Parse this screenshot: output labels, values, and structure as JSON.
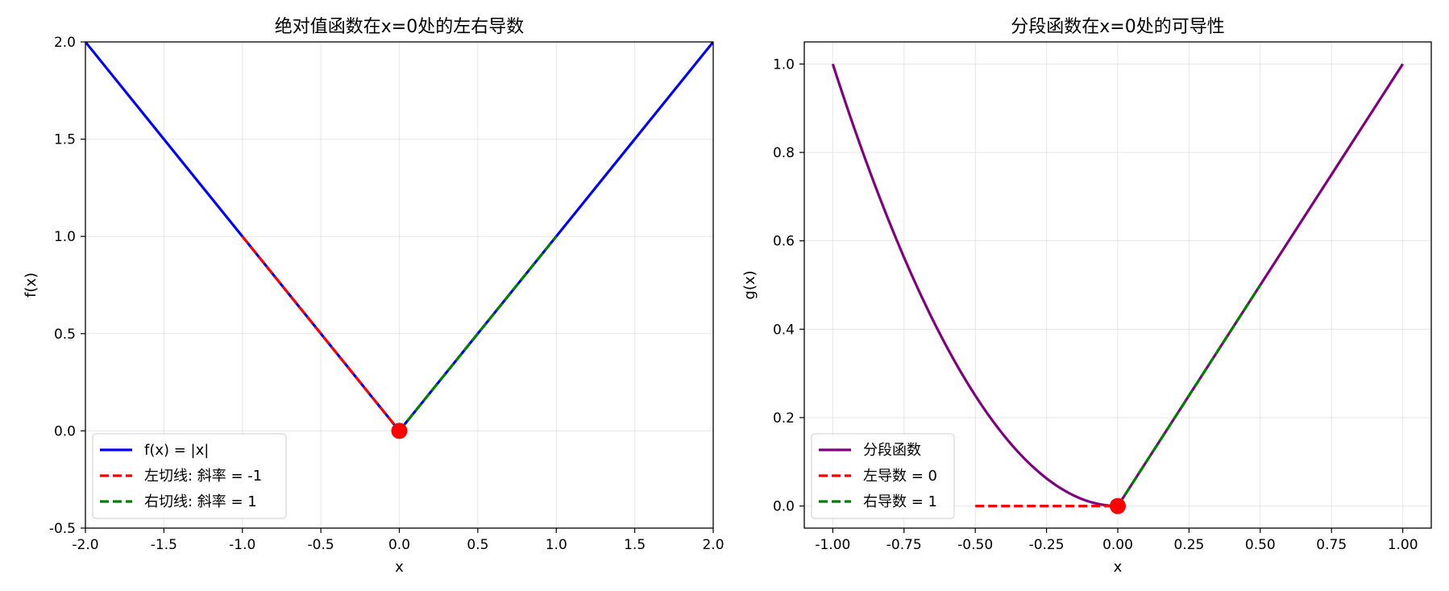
{
  "chart_data": [
    {
      "type": "line",
      "title": "绝对值函数在x=0处的左右导数",
      "xlabel": "x",
      "ylabel": "f(x)",
      "xlim": [
        -2.0,
        2.0
      ],
      "ylim": [
        -0.5,
        2.0
      ],
      "xticks": [
        -2.0,
        -1.5,
        -1.0,
        -0.5,
        0.0,
        0.5,
        1.0,
        1.5,
        2.0
      ],
      "xtick_labels": [
        "-2.0",
        "-1.5",
        "-1.0",
        "-0.5",
        "0.0",
        "0.5",
        "1.0",
        "1.5",
        "2.0"
      ],
      "yticks": [
        -0.5,
        0.0,
        0.5,
        1.0,
        1.5,
        2.0
      ],
      "ytick_labels": [
        "-0.5",
        "0.0",
        "0.5",
        "1.0",
        "1.5",
        "2.0"
      ],
      "grid": true,
      "legend_position": "lower-left",
      "series": [
        {
          "name": "f(x) = |x|",
          "style": "solid",
          "color": "#0000ff",
          "x": [
            -2.0,
            0.0,
            2.0
          ],
          "y": [
            2.0,
            0.0,
            2.0
          ]
        },
        {
          "name": "左切线: 斜率 = -1",
          "style": "dashed",
          "color": "#ff0000",
          "x": [
            -1.0,
            0.0
          ],
          "y": [
            1.0,
            0.0
          ]
        },
        {
          "name": "右切线: 斜率 = 1",
          "style": "dashed",
          "color": "#008000",
          "x": [
            0.0,
            1.0
          ],
          "y": [
            0.0,
            1.0
          ]
        }
      ],
      "points": [
        {
          "x": 0.0,
          "y": 0.0,
          "color": "#ff0000"
        }
      ]
    },
    {
      "type": "line",
      "title": "分段函数在x=0处的可导性",
      "xlabel": "x",
      "ylabel": "g(x)",
      "xlim": [
        -1.1,
        1.1
      ],
      "ylim": [
        -0.05,
        1.05
      ],
      "xticks": [
        -1.0,
        -0.75,
        -0.5,
        -0.25,
        0.0,
        0.25,
        0.5,
        0.75,
        1.0
      ],
      "xtick_labels": [
        "-1.00",
        "-0.75",
        "-0.50",
        "-0.25",
        "0.00",
        "0.25",
        "0.50",
        "0.75",
        "1.00"
      ],
      "yticks": [
        0.0,
        0.2,
        0.4,
        0.6,
        0.8,
        1.0
      ],
      "ytick_labels": [
        "0.0",
        "0.2",
        "0.4",
        "0.6",
        "0.8",
        "1.0"
      ],
      "grid": true,
      "legend_position": "lower-left",
      "series": [
        {
          "name": "分段函数",
          "style": "solid",
          "color": "#800080",
          "x": [
            -1.0,
            -0.9,
            -0.8,
            -0.7,
            -0.6,
            -0.5,
            -0.4,
            -0.3,
            -0.2,
            -0.1,
            0.0,
            1.0
          ],
          "y": [
            1.0,
            0.81,
            0.64,
            0.49,
            0.36,
            0.25,
            0.16,
            0.09,
            0.04,
            0.01,
            0.0,
            1.0
          ]
        },
        {
          "name": "左导数 = 0",
          "style": "dashed",
          "color": "#ff0000",
          "x": [
            -0.5,
            0.0
          ],
          "y": [
            0.0,
            0.0
          ]
        },
        {
          "name": "右导数 = 1",
          "style": "dashed",
          "color": "#008000",
          "x": [
            0.0,
            0.5
          ],
          "y": [
            0.0,
            0.5
          ]
        }
      ],
      "points": [
        {
          "x": 0.0,
          "y": 0.0,
          "color": "#ff0000"
        }
      ]
    }
  ]
}
